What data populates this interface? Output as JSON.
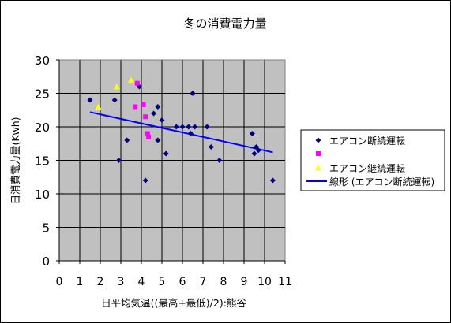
{
  "chart_data": {
    "type": "scatter",
    "title": "冬の消費電力量",
    "xlabel": "日平均気温((最高+最低)/2):熊谷",
    "ylabel": "日消費電力量(Kwh)",
    "xlim": [
      0,
      11
    ],
    "ylim": [
      0,
      30
    ],
    "x_ticks": [
      "0",
      "1",
      "2",
      "3",
      "4",
      "5",
      "6",
      "7",
      "8",
      "9",
      "10",
      "11"
    ],
    "y_ticks": [
      "0",
      "5",
      "10",
      "15",
      "20",
      "25",
      "30"
    ],
    "grid": true,
    "legend_position": "right",
    "series": [
      {
        "name": "エアコン断続運転",
        "marker": "diamond",
        "color": "#000080",
        "points": [
          [
            1.5,
            24
          ],
          [
            2.7,
            24
          ],
          [
            2.9,
            15
          ],
          [
            3.3,
            18
          ],
          [
            3.9,
            26
          ],
          [
            4.2,
            12
          ],
          [
            4.6,
            22
          ],
          [
            4.8,
            18
          ],
          [
            4.8,
            23
          ],
          [
            5.0,
            21
          ],
          [
            5.2,
            16
          ],
          [
            5.7,
            20
          ],
          [
            6.0,
            20
          ],
          [
            6.3,
            20
          ],
          [
            6.4,
            19
          ],
          [
            6.5,
            25
          ],
          [
            6.6,
            20
          ],
          [
            7.2,
            20
          ],
          [
            7.4,
            17
          ],
          [
            7.8,
            15
          ],
          [
            9.4,
            19
          ],
          [
            9.5,
            16
          ],
          [
            9.6,
            17
          ],
          [
            9.7,
            16.5
          ],
          [
            10.4,
            12
          ]
        ]
      },
      {
        "name": "",
        "marker": "square",
        "color": "#ff00ff",
        "points": [
          [
            3.7,
            23
          ],
          [
            3.8,
            26.5
          ],
          [
            4.1,
            23.3
          ],
          [
            4.2,
            21.5
          ],
          [
            4.3,
            19
          ],
          [
            4.35,
            18.5
          ]
        ]
      },
      {
        "name": "エアコン継続運転",
        "marker": "triangle",
        "color": "#ffff00",
        "points": [
          [
            1.9,
            23
          ],
          [
            2.8,
            26
          ],
          [
            3.5,
            27
          ]
        ]
      }
    ],
    "trendline": {
      "name": "線形 (エアコン断続運転)",
      "color": "#0000ff",
      "x": [
        1.5,
        10.4
      ],
      "y": [
        22.2,
        16.2
      ]
    }
  }
}
